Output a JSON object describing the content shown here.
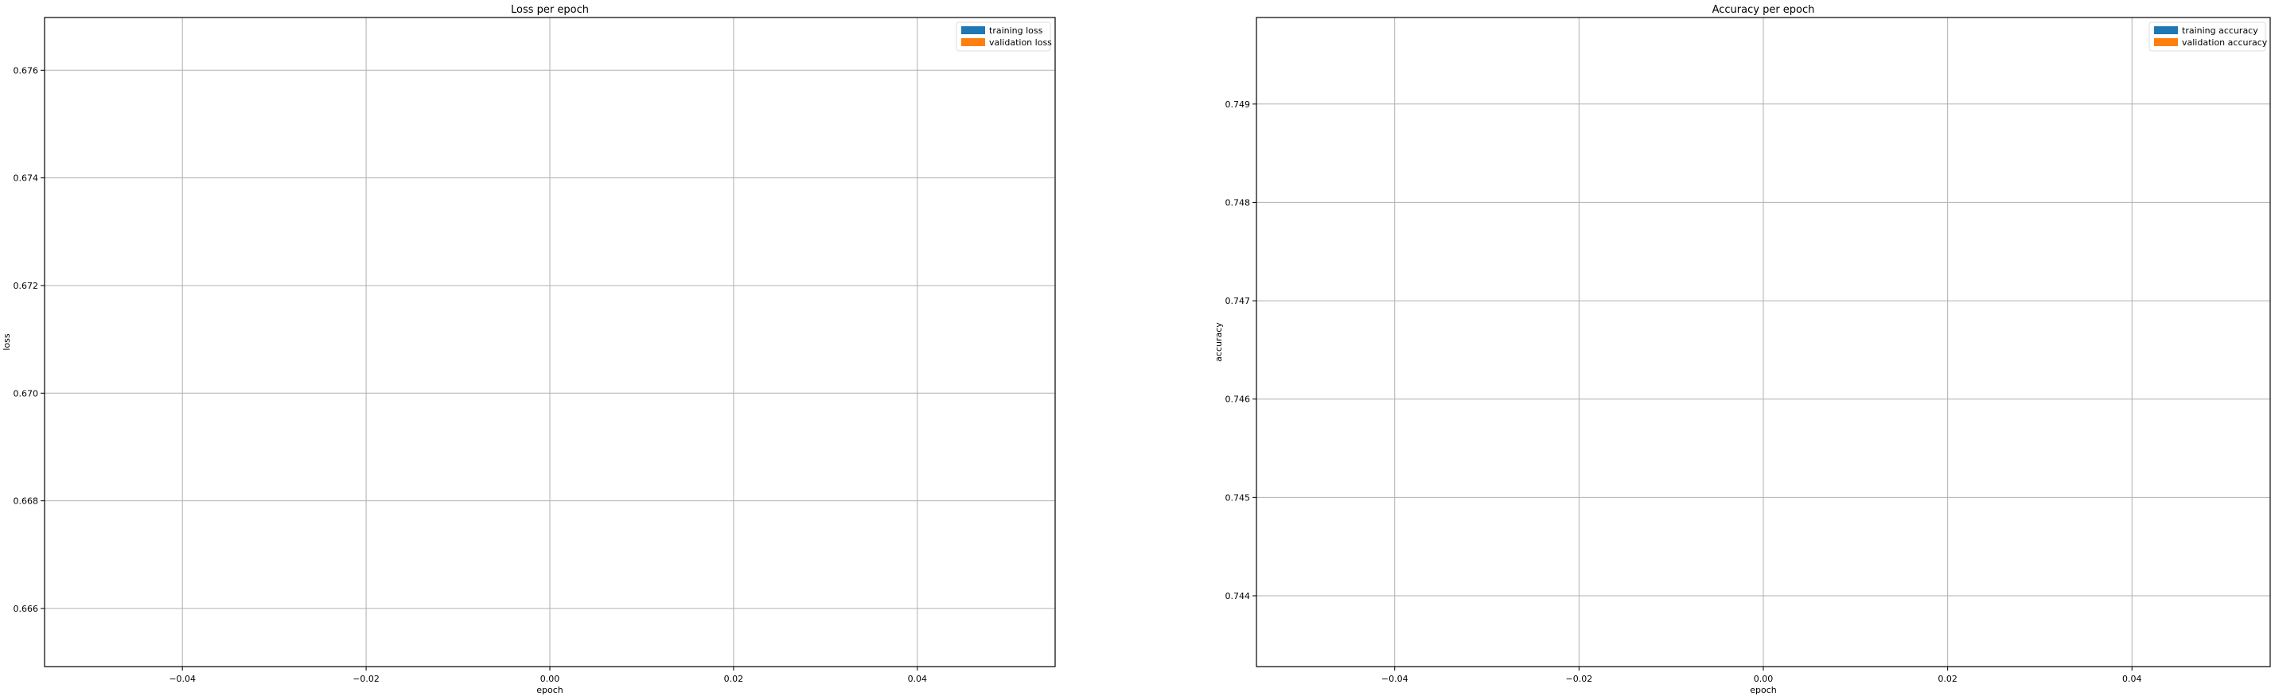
{
  "chart_data": [
    {
      "type": "line",
      "title": "Loss per epoch",
      "xlabel": "epoch",
      "ylabel": "loss",
      "xlim": [
        -0.055,
        0.055
      ],
      "ylim": [
        0.66492,
        0.67698
      ],
      "xticks": [
        -0.04,
        -0.02,
        0.0,
        0.02,
        0.04
      ],
      "xtick_labels": [
        "−0.04",
        "−0.02",
        "0.00",
        "0.02",
        "0.04"
      ],
      "yticks": [
        0.666,
        0.668,
        0.67,
        0.672,
        0.674,
        0.676
      ],
      "ytick_labels": [
        "0.666",
        "0.668",
        "0.670",
        "0.672",
        "0.674",
        "0.676"
      ],
      "grid": true,
      "legend_position": "top-right",
      "series": [
        {
          "name": "training loss",
          "color": "#1f77b4",
          "x": [],
          "y": []
        },
        {
          "name": "validation loss",
          "color": "#ff7f0e",
          "x": [],
          "y": []
        }
      ]
    },
    {
      "type": "line",
      "title": "Accuracy per epoch",
      "xlabel": "epoch",
      "ylabel": "accuracy",
      "xlim": [
        -0.055,
        0.055
      ],
      "ylim": [
        0.74328,
        0.74988
      ],
      "xticks": [
        -0.04,
        -0.02,
        0.0,
        0.02,
        0.04
      ],
      "xtick_labels": [
        "−0.04",
        "−0.02",
        "0.00",
        "0.02",
        "0.04"
      ],
      "yticks": [
        0.744,
        0.745,
        0.746,
        0.747,
        0.748,
        0.749
      ],
      "ytick_labels": [
        "0.744",
        "0.745",
        "0.746",
        "0.747",
        "0.748",
        "0.749"
      ],
      "grid": true,
      "legend_position": "top-right",
      "series": [
        {
          "name": "training accuracy",
          "color": "#1f77b4",
          "x": [],
          "y": []
        },
        {
          "name": "validation accuracy",
          "color": "#ff7f0e",
          "x": [],
          "y": []
        }
      ]
    }
  ]
}
